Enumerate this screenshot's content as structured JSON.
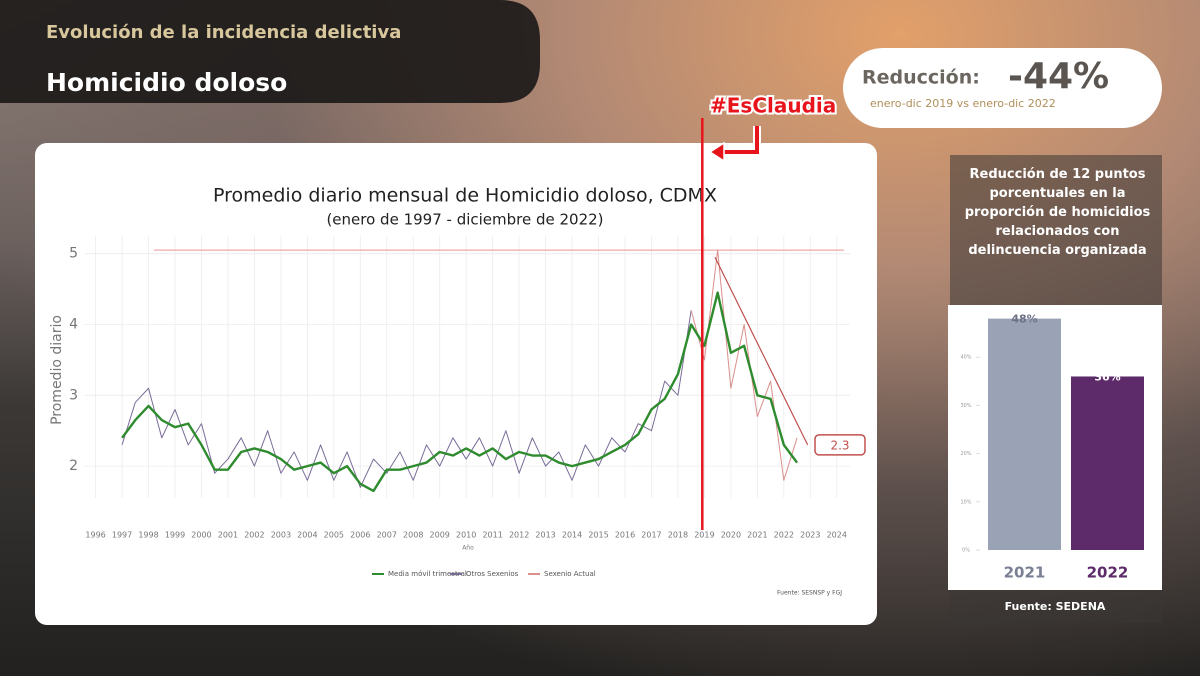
{
  "header": {
    "kicker": "Evolución de la incidencia delictiva",
    "title": "Homicidio doloso"
  },
  "summary": {
    "label": "Reducción:",
    "value": "-44%",
    "period": "enero-dic 2019 vs enero-dic 2022"
  },
  "overlay": {
    "hashtag": "#EsClaudia"
  },
  "side_panel": {
    "text": "Reducción de 12 puntos porcentuales en la proporción de homicidios relacionados con delincuencia organizada",
    "source": "Fuente: SEDENA"
  },
  "chart_data": [
    {
      "type": "line",
      "title": "Promedio diario mensual de Homicidio doloso, CDMX",
      "subtitle": "(enero de 1997 - diciembre de 2022)",
      "x_label": "Año",
      "y_label": "Promedio diario",
      "x": [
        1997,
        1997.5,
        1998,
        1998.5,
        1999,
        1999.5,
        2000,
        2000.5,
        2001,
        2001.5,
        2002,
        2002.5,
        2003,
        2003.5,
        2004,
        2004.5,
        2005,
        2005.5,
        2006,
        2006.5,
        2007,
        2007.5,
        2008,
        2008.5,
        2009,
        2009.5,
        2010,
        2010.5,
        2011,
        2011.5,
        2012,
        2012.5,
        2013,
        2013.5,
        2014,
        2014.5,
        2015,
        2015.5,
        2016,
        2016.5,
        2017,
        2017.5,
        2018,
        2018.5,
        2019,
        2019.5,
        2020,
        2020.5,
        2021,
        2021.5,
        2022,
        2022.5
      ],
      "series": [
        {
          "name": "Otros Sexenios",
          "color": "#7a6c98",
          "values": [
            2.3,
            2.9,
            3.1,
            2.4,
            2.8,
            2.3,
            2.6,
            1.9,
            2.1,
            2.4,
            2.0,
            2.5,
            1.9,
            2.2,
            1.8,
            2.3,
            1.8,
            2.2,
            1.7,
            2.1,
            1.9,
            2.2,
            1.8,
            2.3,
            2.0,
            2.4,
            2.1,
            2.4,
            2.0,
            2.5,
            1.9,
            2.4,
            2.0,
            2.2,
            1.8,
            2.3,
            2.0,
            2.4,
            2.2,
            2.6,
            2.5,
            3.2,
            3.0,
            4.2,
            null,
            null,
            null,
            null,
            null,
            null,
            null,
            null
          ]
        },
        {
          "name": "Sexenio Actual",
          "color": "#d98f8c",
          "values": [
            null,
            null,
            null,
            null,
            null,
            null,
            null,
            null,
            null,
            null,
            null,
            null,
            null,
            null,
            null,
            null,
            null,
            null,
            null,
            null,
            null,
            null,
            null,
            null,
            null,
            null,
            null,
            null,
            null,
            null,
            null,
            null,
            null,
            null,
            null,
            null,
            null,
            null,
            null,
            null,
            null,
            null,
            null,
            4.2,
            3.5,
            5.05,
            3.1,
            4.0,
            2.7,
            3.2,
            1.8,
            2.4
          ]
        },
        {
          "name": "Media móvil trimestral",
          "color": "#2e8b2e",
          "values": [
            2.4,
            2.65,
            2.85,
            2.65,
            2.55,
            2.6,
            2.3,
            1.95,
            1.95,
            2.2,
            2.25,
            2.2,
            2.1,
            1.95,
            2.0,
            2.05,
            1.9,
            2.0,
            1.75,
            1.65,
            1.95,
            1.95,
            2.0,
            2.05,
            2.2,
            2.15,
            2.25,
            2.15,
            2.25,
            2.1,
            2.2,
            2.15,
            2.15,
            2.05,
            2.0,
            2.05,
            2.1,
            2.2,
            2.3,
            2.45,
            2.8,
            2.95,
            3.3,
            4.0,
            3.7,
            4.45,
            3.6,
            3.7,
            3.0,
            2.95,
            2.3,
            2.05
          ]
        }
      ],
      "legend_order": [
        "Media móvil trimestral",
        "Otros Sexenios",
        "Sexenio Actual"
      ],
      "xlim": [
        1995.6,
        2024.5
      ],
      "ylim": [
        1.55,
        5.25
      ],
      "xticks": [
        1996,
        1997,
        1998,
        1999,
        2000,
        2001,
        2002,
        2003,
        2004,
        2005,
        2006,
        2007,
        2008,
        2009,
        2010,
        2011,
        2012,
        2013,
        2014,
        2015,
        2016,
        2017,
        2018,
        2019,
        2020,
        2021,
        2022,
        2023,
        2024
      ],
      "yticks": [
        2,
        3,
        4,
        5
      ],
      "grid": true,
      "reference_line": 5.05,
      "reference_color": "#f0a8a8",
      "trend_line": {
        "x": [
          2019.4,
          2022.9
        ],
        "y": [
          4.95,
          2.3
        ]
      },
      "trend_color": "#c0504d",
      "end_label": 2.3,
      "marker_x": 2018.92,
      "marker_color": "#e8141c",
      "source": "Fuente: SESNSP y FGJ"
    },
    {
      "type": "bar",
      "categories": [
        "2021",
        "2022"
      ],
      "values": [
        48,
        36
      ],
      "value_labels": [
        "48%",
        "36%"
      ],
      "colors": [
        "#9aa2b6",
        "#5d2b69"
      ],
      "ylim": [
        0,
        50
      ],
      "yticks": [
        {
          "value": 0,
          "label": "0%"
        },
        {
          "value": 10,
          "label": "10%"
        },
        {
          "value": 20,
          "label": "20%"
        },
        {
          "value": 30,
          "label": "30%"
        },
        {
          "value": 40,
          "label": "40%"
        }
      ]
    }
  ]
}
